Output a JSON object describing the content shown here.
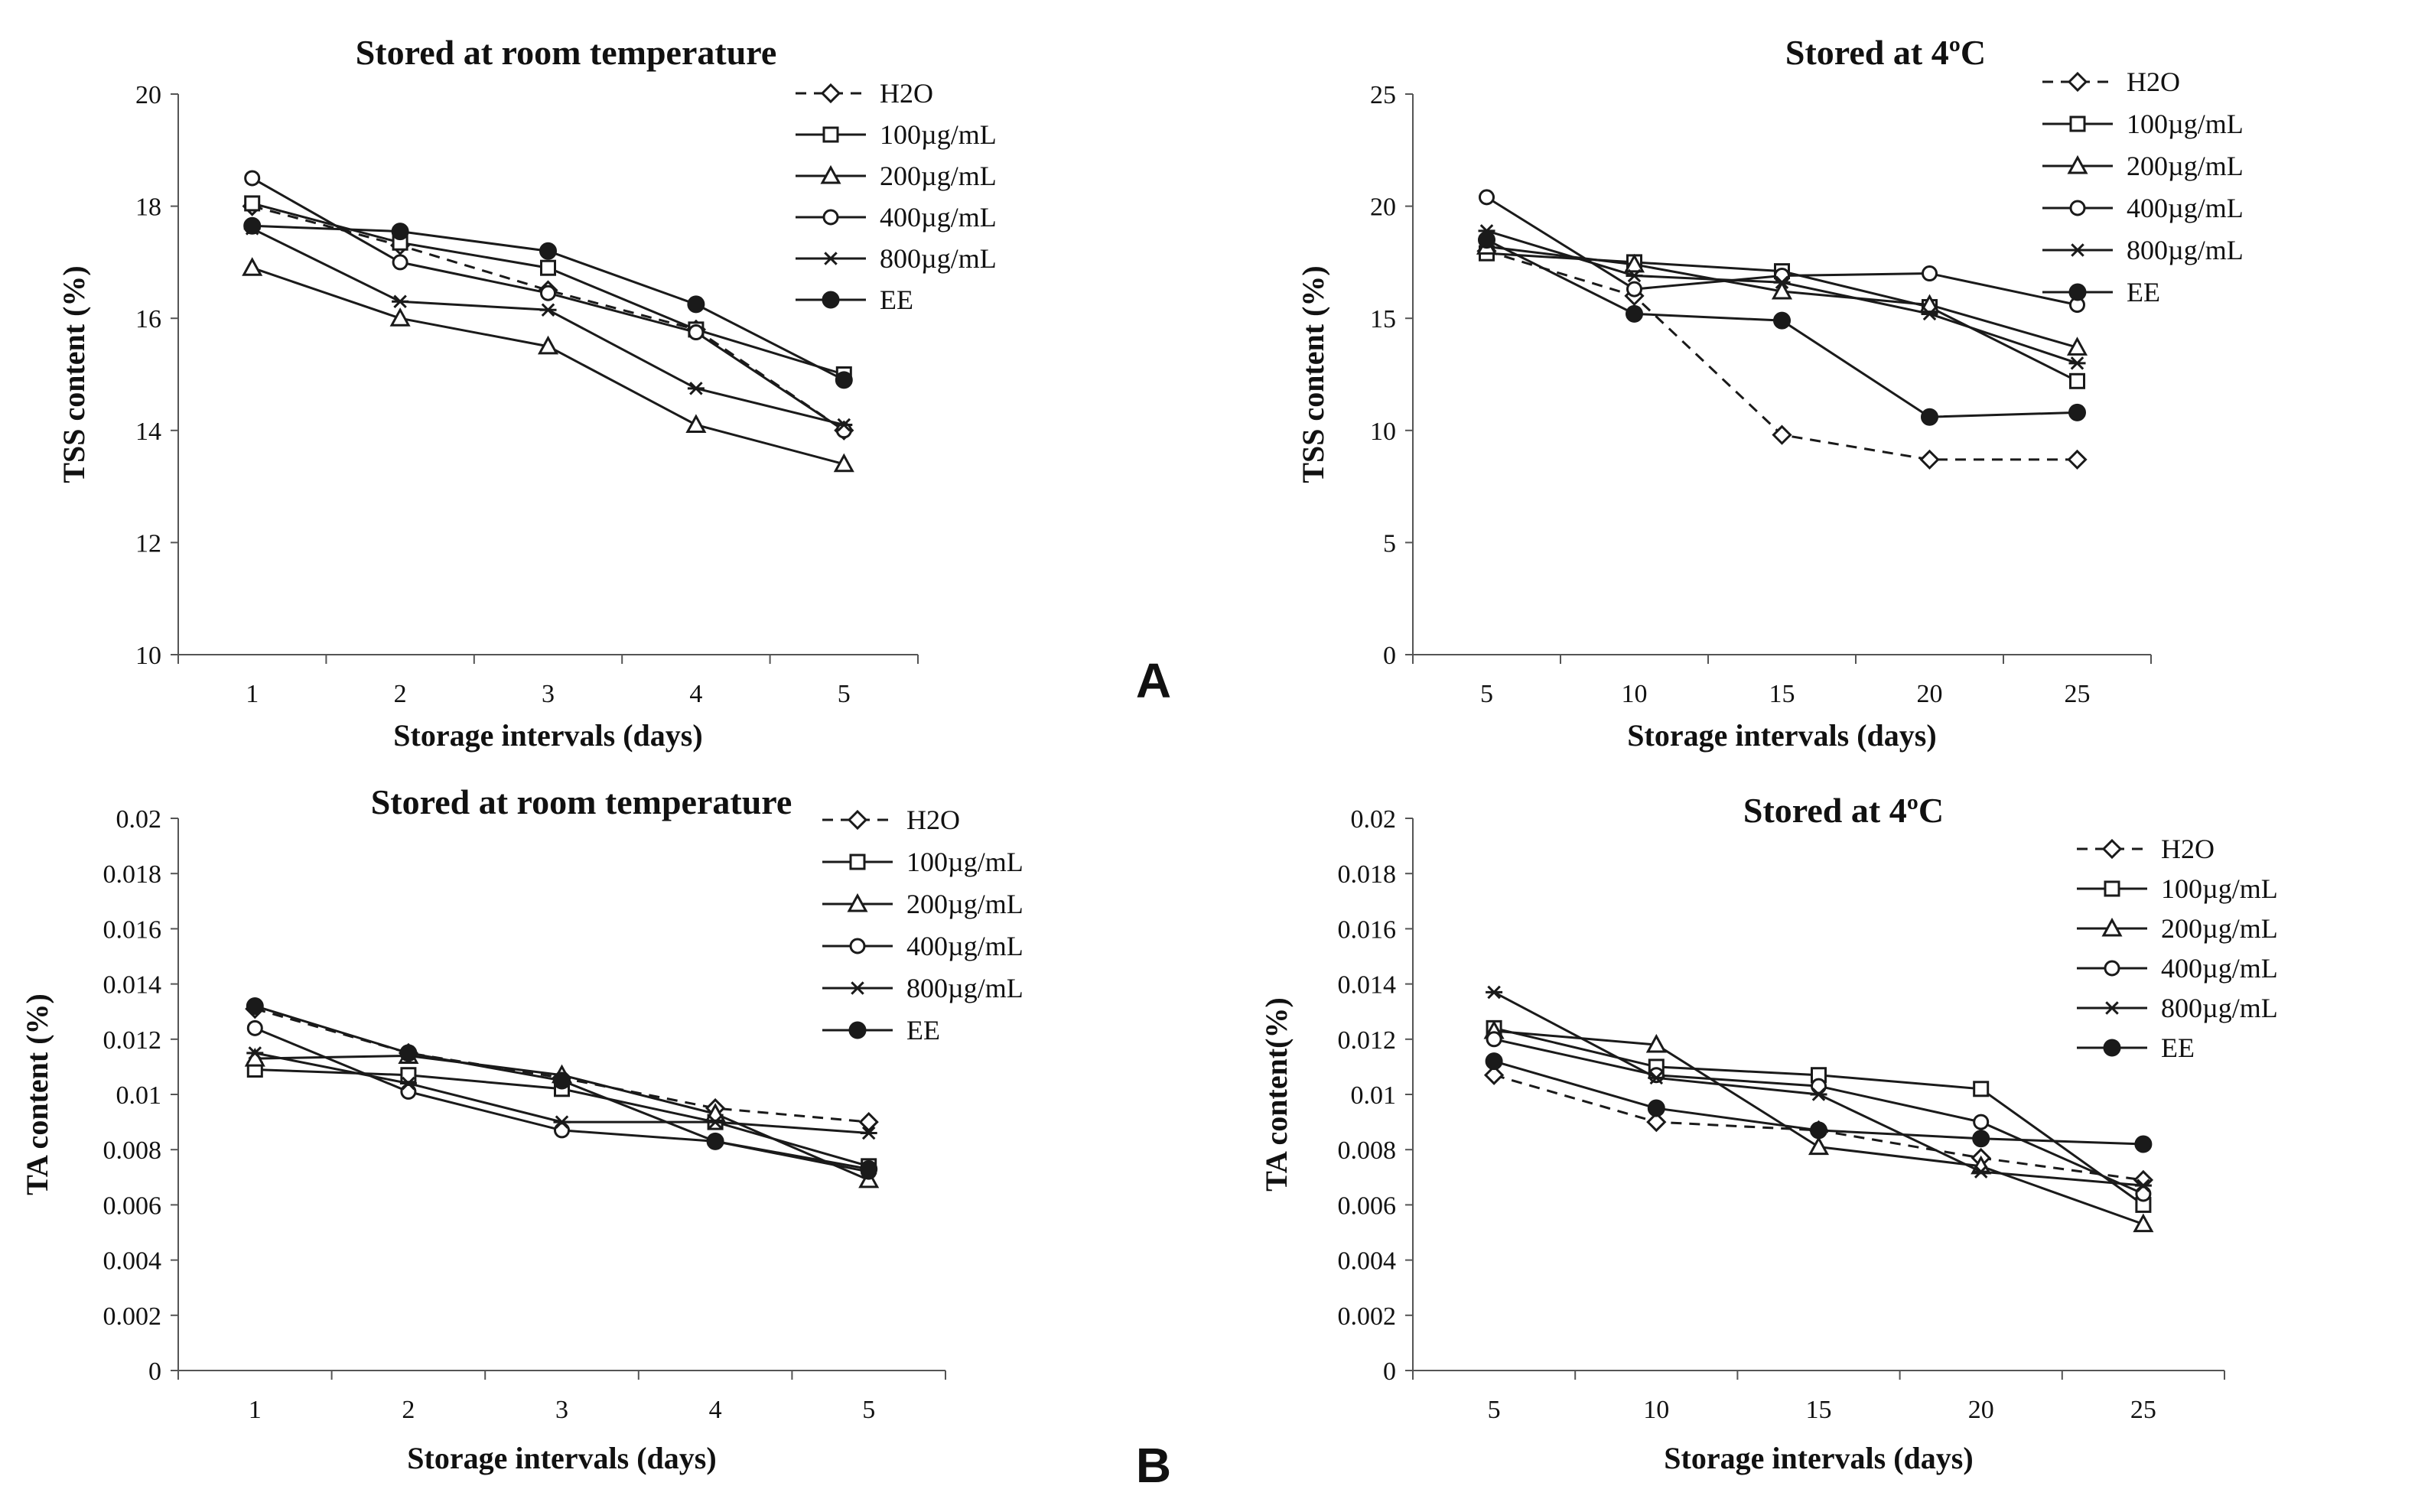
{
  "panel_labels": [
    "A",
    "B"
  ],
  "chart_data": [
    {
      "id": "tss-room",
      "type": "line",
      "title": "Stored at room temperature",
      "xlabel": "Storage intervals (days)",
      "ylabel": "TSS content (%)",
      "categories": [
        "1",
        "2",
        "3",
        "4",
        "5"
      ],
      "ylim": [
        10,
        20
      ],
      "yticks": [
        "10",
        "12",
        "14",
        "16",
        "18",
        "20"
      ],
      "grid": false,
      "legend_position": "top-right outside",
      "series": [
        {
          "name": "H2O",
          "marker": "diamond",
          "dashed": true,
          "values": [
            18.0,
            17.3,
            16.5,
            15.8,
            14.0
          ]
        },
        {
          "name": "100µg/mL",
          "marker": "square",
          "dashed": false,
          "values": [
            18.05,
            17.35,
            16.9,
            15.8,
            15.0
          ]
        },
        {
          "name": "200µg/mL",
          "marker": "triangle",
          "dashed": false,
          "values": [
            16.9,
            16.0,
            15.5,
            14.1,
            13.4
          ]
        },
        {
          "name": "400µg/mL",
          "marker": "circle",
          "dashed": false,
          "values": [
            18.5,
            17.0,
            16.45,
            15.75,
            14.0
          ]
        },
        {
          "name": "800µg/mL",
          "marker": "star",
          "dashed": false,
          "values": [
            17.6,
            16.3,
            16.15,
            14.75,
            14.1
          ]
        },
        {
          "name": "EE",
          "marker": "filled-circle",
          "dashed": false,
          "values": [
            17.65,
            17.55,
            17.2,
            16.25,
            14.9
          ]
        }
      ]
    },
    {
      "id": "tss-cold",
      "type": "line",
      "title": "Stored at 4ºC",
      "xlabel": "Storage intervals (days)",
      "ylabel": "TSS content (%)",
      "categories": [
        "5",
        "10",
        "15",
        "20",
        "25"
      ],
      "ylim": [
        0,
        25
      ],
      "yticks": [
        "0",
        "5",
        "10",
        "15",
        "20",
        "25"
      ],
      "grid": false,
      "legend_position": "top-right outside",
      "series": [
        {
          "name": "H2O",
          "marker": "diamond",
          "dashed": true,
          "values": [
            18.0,
            16.0,
            9.8,
            8.7,
            8.7
          ]
        },
        {
          "name": "100µg/mL",
          "marker": "square",
          "dashed": false,
          "values": [
            17.9,
            17.5,
            17.1,
            15.5,
            12.2
          ]
        },
        {
          "name": "200µg/mL",
          "marker": "triangle",
          "dashed": false,
          "values": [
            18.2,
            17.4,
            16.2,
            15.6,
            13.7
          ]
        },
        {
          "name": "400µg/mL",
          "marker": "circle",
          "dashed": false,
          "values": [
            20.4,
            16.3,
            16.9,
            17.0,
            15.6
          ]
        },
        {
          "name": "800µg/mL",
          "marker": "star",
          "dashed": false,
          "values": [
            18.9,
            16.9,
            16.6,
            15.2,
            13.0
          ]
        },
        {
          "name": "EE",
          "marker": "filled-circle",
          "dashed": false,
          "values": [
            18.5,
            15.2,
            14.9,
            10.6,
            10.8
          ]
        }
      ]
    },
    {
      "id": "ta-room",
      "type": "line",
      "title": "Stored at room temperature",
      "xlabel": "Storage intervals (days)",
      "ylabel": "TA content (%)",
      "categories": [
        "1",
        "2",
        "3",
        "4",
        "5"
      ],
      "ylim": [
        0,
        0.02
      ],
      "yticks": [
        "0",
        "0.002",
        "0.004",
        "0.006",
        "0.008",
        "0.01",
        "0.012",
        "0.014",
        "0.016",
        "0.018",
        "0.02"
      ],
      "grid": false,
      "legend_position": "top-right outside",
      "series": [
        {
          "name": "H2O",
          "marker": "diamond",
          "dashed": true,
          "values": [
            0.0131,
            0.0115,
            0.0106,
            0.0095,
            0.009
          ]
        },
        {
          "name": "100µg/mL",
          "marker": "square",
          "dashed": false,
          "values": [
            0.0109,
            0.0107,
            0.0102,
            0.009,
            0.0074
          ]
        },
        {
          "name": "200µg/mL",
          "marker": "triangle",
          "dashed": false,
          "values": [
            0.0113,
            0.0114,
            0.0107,
            0.0093,
            0.0069
          ]
        },
        {
          "name": "400µg/mL",
          "marker": "circle",
          "dashed": false,
          "values": [
            0.0124,
            0.0101,
            0.0087,
            0.0083,
            0.0072
          ]
        },
        {
          "name": "800µg/mL",
          "marker": "star",
          "dashed": false,
          "values": [
            0.0115,
            0.0104,
            0.009,
            0.009,
            0.0086
          ]
        },
        {
          "name": "EE",
          "marker": "filled-circle",
          "dashed": false,
          "values": [
            0.0132,
            0.0115,
            0.0105,
            0.0083,
            0.0073
          ]
        }
      ]
    },
    {
      "id": "ta-cold",
      "type": "line",
      "title": "Stored at 4ºC",
      "xlabel": "Storage intervals (days)",
      "ylabel": "TA content(%)",
      "categories": [
        "5",
        "10",
        "15",
        "20",
        "25"
      ],
      "ylim": [
        0,
        0.02
      ],
      "yticks": [
        "0",
        "0.002",
        "0.004",
        "0.006",
        "0.008",
        "0.01",
        "0.012",
        "0.014",
        "0.016",
        "0.018",
        "0.02"
      ],
      "grid": false,
      "legend_position": "top-right outside",
      "series": [
        {
          "name": "H2O",
          "marker": "diamond",
          "dashed": true,
          "values": [
            0.0107,
            0.009,
            0.0087,
            0.0077,
            0.0069
          ]
        },
        {
          "name": "100µg/mL",
          "marker": "square",
          "dashed": false,
          "values": [
            0.0124,
            0.011,
            0.0107,
            0.0102,
            0.006
          ]
        },
        {
          "name": "200µg/mL",
          "marker": "triangle",
          "dashed": false,
          "values": [
            0.0123,
            0.0118,
            0.0081,
            0.0074,
            0.0053
          ]
        },
        {
          "name": "400µg/mL",
          "marker": "circle",
          "dashed": false,
          "values": [
            0.012,
            0.0107,
            0.0103,
            0.009,
            0.0064
          ]
        },
        {
          "name": "800µg/mL",
          "marker": "star",
          "dashed": false,
          "values": [
            0.0137,
            0.0106,
            0.01,
            0.0072,
            0.0067
          ]
        },
        {
          "name": "EE",
          "marker": "filled-circle",
          "dashed": false,
          "values": [
            0.0112,
            0.0095,
            0.0087,
            0.0084,
            0.0082
          ]
        }
      ]
    }
  ]
}
